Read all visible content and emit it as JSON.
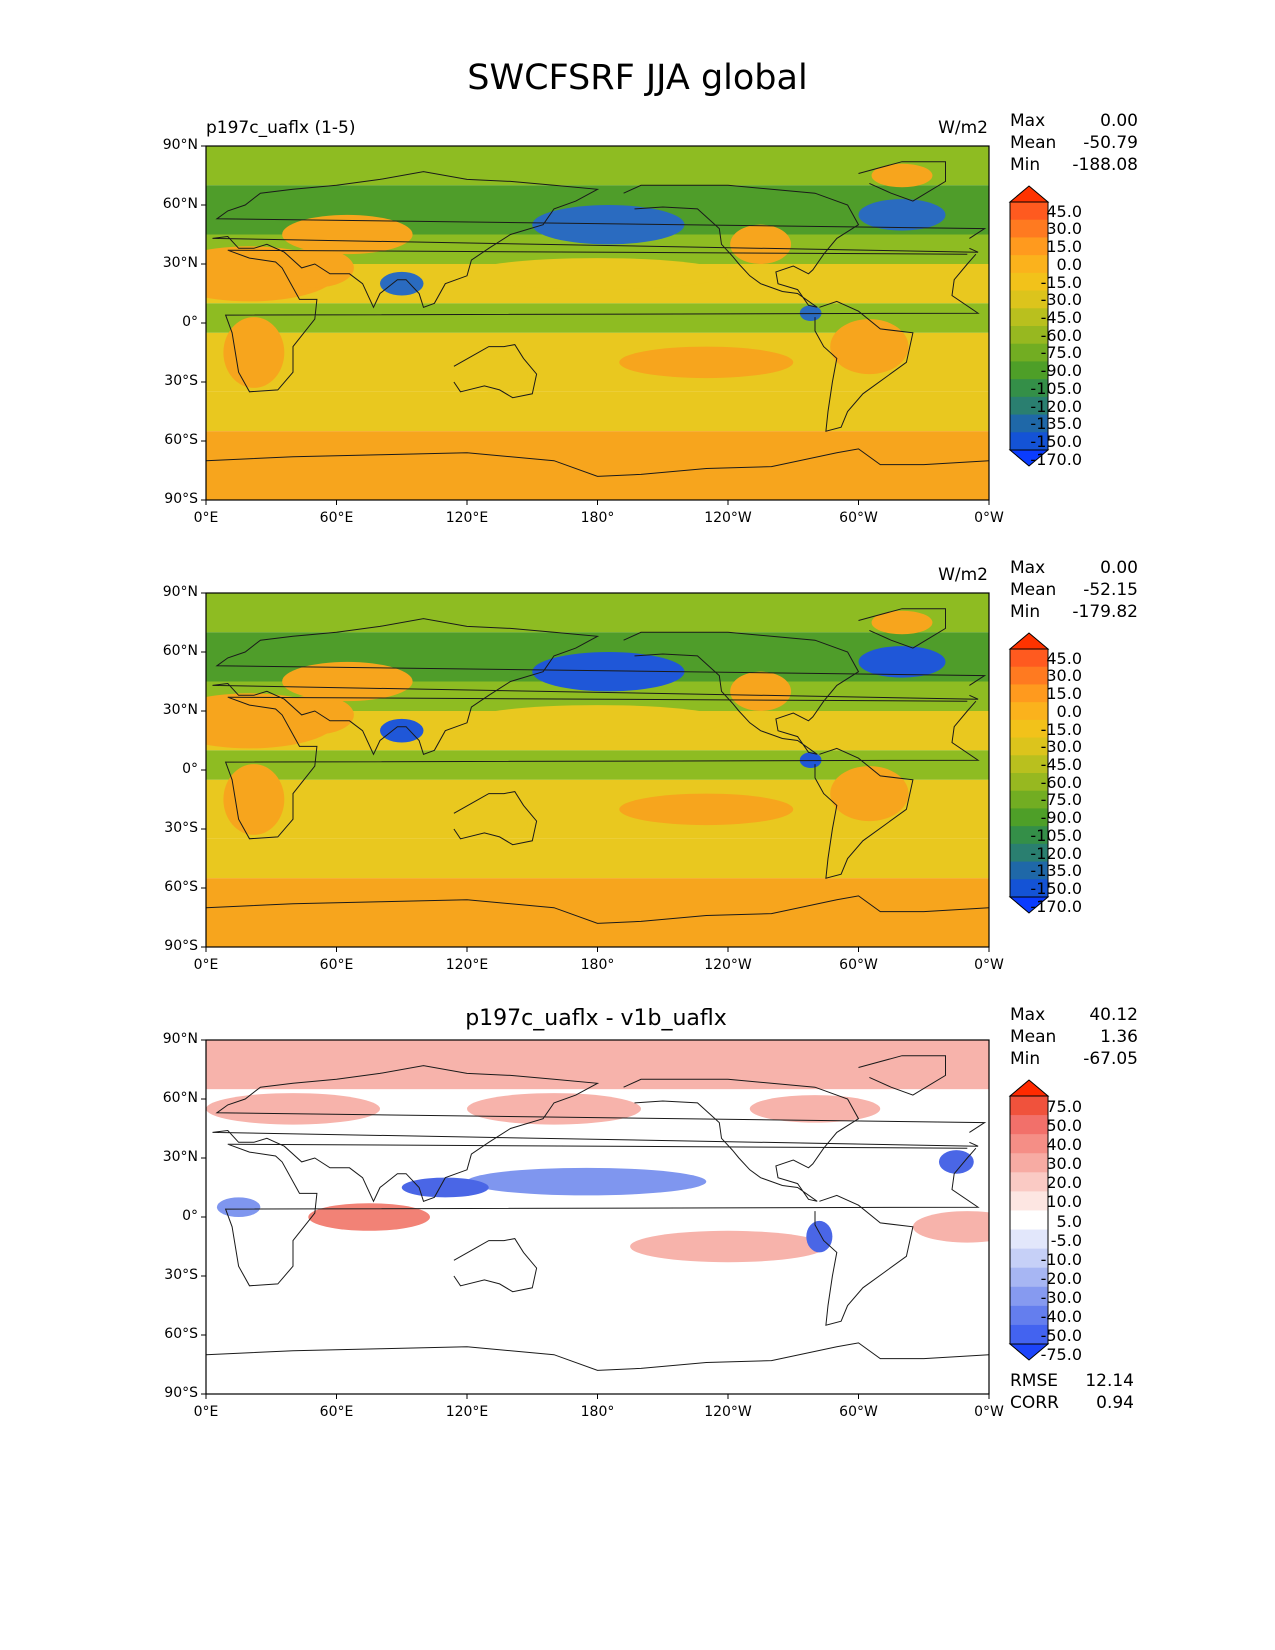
{
  "figure": {
    "title": "SWCFSRF JJA global"
  },
  "latitude_ticks": [
    "90°N",
    "60°N",
    "30°N",
    "0°",
    "30°S",
    "60°S",
    "90°S"
  ],
  "longitude_ticks": [
    "0°E",
    "60°E",
    "120°E",
    "180°",
    "120°W",
    "60°W",
    "0°W"
  ],
  "panels": [
    {
      "left_title": "p197c_uaflx (1-5)",
      "center_title": "",
      "units": "W/m2",
      "stats": {
        "max_label": "Max",
        "max": "0.00",
        "mean_label": "Mean",
        "mean": "-50.79",
        "min_label": "Min",
        "min": "-188.08"
      },
      "colorbar_levels": [
        "45.0",
        "30.0",
        "15.0",
        "0.0",
        "-15.0",
        "-30.0",
        "-45.0",
        "-60.0",
        "-75.0",
        "-90.0",
        "-105.0",
        "-120.0",
        "-135.0",
        "-150.0",
        "-170.0"
      ],
      "colorbar_colors": [
        "#ff3300",
        "#ff5a1f",
        "#ff7a20",
        "#ff9a1e",
        "#fbb21c",
        "#f2c21a",
        "#dcc41c",
        "#b9c01e",
        "#97b820",
        "#72ad22",
        "#4e9f28",
        "#348f48",
        "#2a7f70",
        "#1f68a8",
        "#1453d6",
        "#0a3cff"
      ],
      "map_colors": {
        "warm": "#f7a51d",
        "mid": "#e9c81f",
        "green": "#8ebc22",
        "deep_green": "#4f9d2a",
        "blue": "#2a6bc0"
      }
    },
    {
      "left_title": "",
      "center_title": "",
      "units": "W/m2",
      "stats": {
        "max_label": "Max",
        "max": "0.00",
        "mean_label": "Mean",
        "mean": "-52.15",
        "min_label": "Min",
        "min": "-179.82"
      },
      "colorbar_levels": [
        "45.0",
        "30.0",
        "15.0",
        "0.0",
        "-15.0",
        "-30.0",
        "-45.0",
        "-60.0",
        "-75.0",
        "-90.0",
        "-105.0",
        "-120.0",
        "-135.0",
        "-150.0",
        "-170.0"
      ],
      "colorbar_colors": [
        "#ff3300",
        "#ff5a1f",
        "#ff7a20",
        "#ff9a1e",
        "#fbb21c",
        "#f2c21a",
        "#dcc41c",
        "#b9c01e",
        "#97b820",
        "#72ad22",
        "#4e9f28",
        "#348f48",
        "#2a7f70",
        "#1f68a8",
        "#1453d6",
        "#0a3cff"
      ],
      "map_colors": {
        "warm": "#f7a51d",
        "mid": "#e9c81f",
        "green": "#8ebc22",
        "deep_green": "#4f9d2a",
        "blue": "#1f57d8"
      }
    },
    {
      "left_title": "",
      "center_title": "p197c_uaflx - v1b_uaflx",
      "units": "",
      "stats": {
        "max_label": "Max",
        "max": "40.12",
        "mean_label": "Mean",
        "mean": "1.36",
        "min_label": "Min",
        "min": "-67.05"
      },
      "colorbar_levels": [
        "75.0",
        "50.0",
        "40.0",
        "30.0",
        "20.0",
        "10.0",
        "5.0",
        "-5.0",
        "-10.0",
        "-20.0",
        "-30.0",
        "-40.0",
        "-50.0",
        "-75.0"
      ],
      "colorbar_colors": [
        "#ff2a00",
        "#f0523c",
        "#f2706a",
        "#f58e86",
        "#f7aba3",
        "#facac4",
        "#fde6e2",
        "#ffffff",
        "#e2e7fb",
        "#c6d0f7",
        "#a7b6f3",
        "#869af0",
        "#647eee",
        "#4363f0",
        "#1c44fa"
      ],
      "rmse_label": "RMSE",
      "rmse": "12.14",
      "corr_label": "CORR",
      "corr": "0.94",
      "map_colors": {
        "white": "#ffffff",
        "pink": "#f7b3ab",
        "red": "#f28276",
        "blue": "#7f96ef",
        "deep_blue": "#4a66e6"
      }
    }
  ]
}
